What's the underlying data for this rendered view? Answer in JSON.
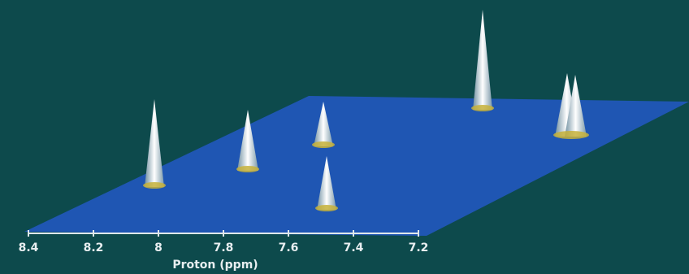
{
  "chart_data": {
    "type": "surface",
    "xlabel": "Proton (ppm)",
    "xlim": [
      8.4,
      7.2
    ],
    "xticks": [
      8.4,
      8.2,
      8.0,
      7.8,
      7.6,
      7.4,
      7.2
    ],
    "background": "#0d4a4c",
    "plane_color": "#1f56b3"
  }
}
